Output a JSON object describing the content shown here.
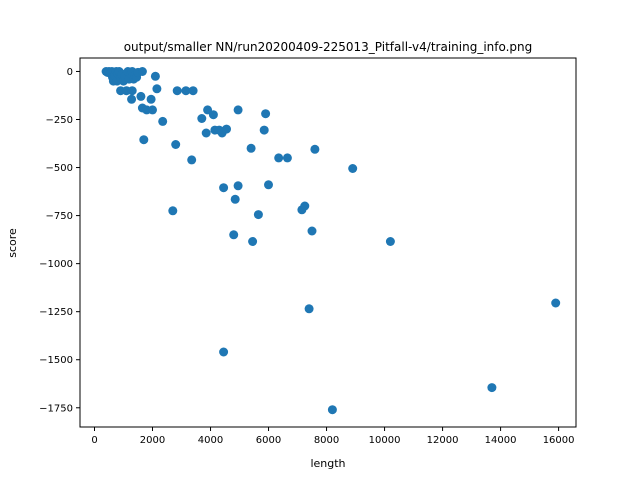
{
  "chart_data": {
    "type": "scatter",
    "title": "output/smaller NN/run20200409-225013_Pitfall-v4/training_info.png",
    "xlabel": "length",
    "ylabel": "score",
    "xlim": [
      -500,
      16600
    ],
    "ylim": [
      -1850,
      70
    ],
    "xticks": [
      0,
      2000,
      4000,
      6000,
      8000,
      10000,
      12000,
      14000,
      16000
    ],
    "yticks": [
      0,
      -250,
      -500,
      -750,
      -1000,
      -1250,
      -1500,
      -1750
    ],
    "xtick_labels": [
      "0",
      "2000",
      "4000",
      "6000",
      "8000",
      "10000",
      "12000",
      "14000",
      "16000"
    ],
    "ytick_labels": [
      "0",
      "−250",
      "−500",
      "−750",
      "−1000",
      "−1250",
      "−1500",
      "−1750"
    ],
    "grid": false,
    "legend": "none",
    "marker_color": "#1f77b4",
    "points": [
      {
        "x": 400,
        "y": 0
      },
      {
        "x": 450,
        "y": -5
      },
      {
        "x": 500,
        "y": 0
      },
      {
        "x": 550,
        "y": -10
      },
      {
        "x": 600,
        "y": 0
      },
      {
        "x": 620,
        "y": -30
      },
      {
        "x": 650,
        "y": -50
      },
      {
        "x": 700,
        "y": -20
      },
      {
        "x": 750,
        "y": 0
      },
      {
        "x": 780,
        "y": -50
      },
      {
        "x": 800,
        "y": -10
      },
      {
        "x": 850,
        "y": 0
      },
      {
        "x": 900,
        "y": -30
      },
      {
        "x": 950,
        "y": -15
      },
      {
        "x": 1000,
        "y": -50
      },
      {
        "x": 900,
        "y": -100
      },
      {
        "x": 1050,
        "y": -25
      },
      {
        "x": 1100,
        "y": -100
      },
      {
        "x": 1150,
        "y": 0
      },
      {
        "x": 1200,
        "y": -40
      },
      {
        "x": 1250,
        "y": -10
      },
      {
        "x": 1300,
        "y": 0
      },
      {
        "x": 1300,
        "y": -100
      },
      {
        "x": 1280,
        "y": -145
      },
      {
        "x": 1350,
        "y": -40
      },
      {
        "x": 1400,
        "y": -20
      },
      {
        "x": 1450,
        "y": -30
      },
      {
        "x": 1500,
        "y": -5
      },
      {
        "x": 1600,
        "y": -130
      },
      {
        "x": 1650,
        "y": 0
      },
      {
        "x": 1650,
        "y": -190
      },
      {
        "x": 1700,
        "y": -355
      },
      {
        "x": 1800,
        "y": -200
      },
      {
        "x": 1950,
        "y": -145
      },
      {
        "x": 2000,
        "y": -200
      },
      {
        "x": 2100,
        "y": -25
      },
      {
        "x": 2150,
        "y": -90
      },
      {
        "x": 2350,
        "y": -260
      },
      {
        "x": 2700,
        "y": -725
      },
      {
        "x": 2800,
        "y": -380
      },
      {
        "x": 2850,
        "y": -100
      },
      {
        "x": 3150,
        "y": -100
      },
      {
        "x": 3350,
        "y": -460
      },
      {
        "x": 3400,
        "y": -100
      },
      {
        "x": 3700,
        "y": -245
      },
      {
        "x": 3850,
        "y": -320
      },
      {
        "x": 3900,
        "y": -200
      },
      {
        "x": 4100,
        "y": -225
      },
      {
        "x": 4150,
        "y": -305
      },
      {
        "x": 4300,
        "y": -305
      },
      {
        "x": 4400,
        "y": -320
      },
      {
        "x": 4450,
        "y": -605
      },
      {
        "x": 4450,
        "y": -1460
      },
      {
        "x": 4550,
        "y": -300
      },
      {
        "x": 4800,
        "y": -850
      },
      {
        "x": 4850,
        "y": -665
      },
      {
        "x": 4950,
        "y": -595
      },
      {
        "x": 4950,
        "y": -200
      },
      {
        "x": 5400,
        "y": -400
      },
      {
        "x": 5450,
        "y": -885
      },
      {
        "x": 5650,
        "y": -745
      },
      {
        "x": 5850,
        "y": -305
      },
      {
        "x": 5900,
        "y": -220
      },
      {
        "x": 6000,
        "y": -590
      },
      {
        "x": 6350,
        "y": -450
      },
      {
        "x": 6650,
        "y": -450
      },
      {
        "x": 7150,
        "y": -720
      },
      {
        "x": 7250,
        "y": -700
      },
      {
        "x": 7400,
        "y": -1235
      },
      {
        "x": 7500,
        "y": -830
      },
      {
        "x": 7600,
        "y": -405
      },
      {
        "x": 8200,
        "y": -1760
      },
      {
        "x": 8900,
        "y": -505
      },
      {
        "x": 10200,
        "y": -885
      },
      {
        "x": 13700,
        "y": -1645
      },
      {
        "x": 15900,
        "y": -1205
      }
    ]
  }
}
